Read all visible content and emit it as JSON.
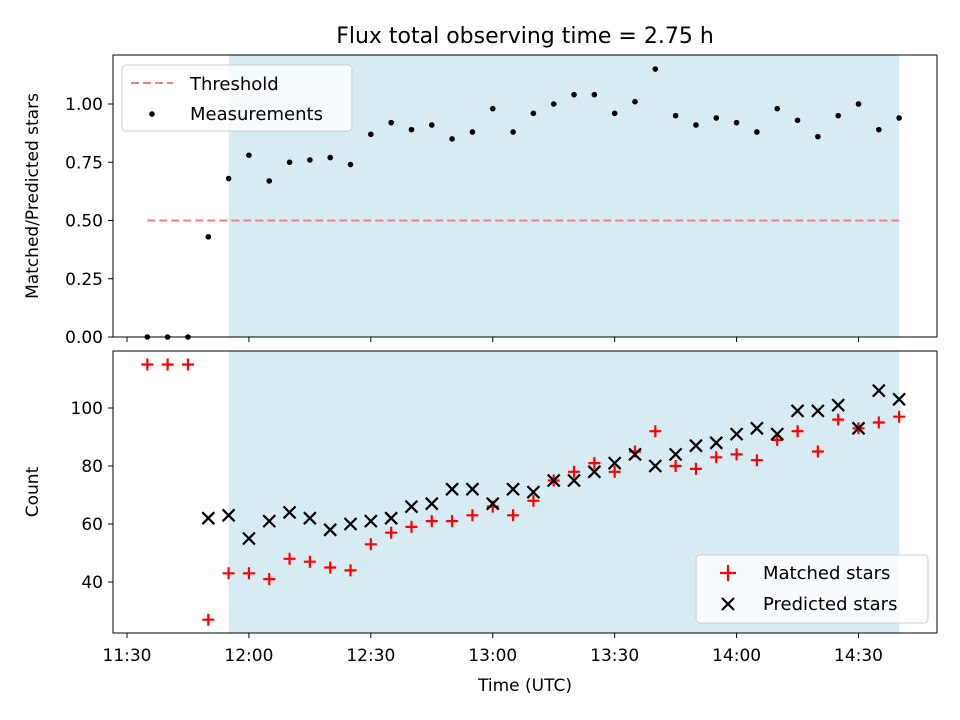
{
  "chart_data": [
    {
      "type": "scatter",
      "title": "Flux total observing time = 2.75 h",
      "ylabel": "Matched/Predicted stars",
      "xlabel": "",
      "ylim": [
        0,
        1.2
      ],
      "yticks": [
        "0.00",
        "0.25",
        "0.50",
        "0.75",
        "1.00"
      ],
      "observing_window": [
        "11:55",
        "14:40"
      ],
      "threshold": {
        "name": "Threshold",
        "value": 0.5,
        "x_range": [
          "11:35",
          "14:40"
        ],
        "color": "#f08080",
        "style": "dashed"
      },
      "legend": {
        "position": "top-left",
        "entries": [
          "Threshold",
          "Measurements"
        ]
      },
      "series": [
        {
          "name": "Measurements",
          "color": "#000000",
          "marker": "dot",
          "x": [
            "11:35",
            "11:40",
            "11:45",
            "11:50",
            "11:55",
            "12:00",
            "12:05",
            "12:10",
            "12:15",
            "12:20",
            "12:25",
            "12:30",
            "12:35",
            "12:40",
            "12:45",
            "12:50",
            "12:55",
            "13:00",
            "13:05",
            "13:10",
            "13:15",
            "13:20",
            "13:25",
            "13:30",
            "13:35",
            "13:40",
            "13:45",
            "13:50",
            "13:55",
            "14:00",
            "14:05",
            "14:10",
            "14:15",
            "14:20",
            "14:25",
            "14:30",
            "14:35",
            "14:40"
          ],
          "values": [
            0.0,
            0.0,
            0.0,
            0.43,
            0.68,
            0.78,
            0.67,
            0.75,
            0.76,
            0.77,
            0.74,
            0.87,
            0.92,
            0.89,
            0.91,
            0.85,
            0.88,
            0.98,
            0.88,
            0.96,
            1.0,
            1.04,
            1.04,
            0.96,
            1.01,
            1.15,
            0.95,
            0.91,
            0.94,
            0.92,
            0.88,
            0.98,
            0.93,
            0.86,
            0.95,
            1.0,
            0.89,
            0.94
          ]
        }
      ]
    },
    {
      "type": "scatter",
      "title": "",
      "ylabel": "Count",
      "xlabel": "Time (UTC)",
      "ylim": [
        23,
        118
      ],
      "yticks": [
        "40",
        "60",
        "80",
        "100"
      ],
      "xticks": [
        "11:30",
        "12:00",
        "12:30",
        "13:00",
        "13:30",
        "14:00",
        "14:30"
      ],
      "observing_window": [
        "11:55",
        "14:40"
      ],
      "legend": {
        "position": "bottom-right",
        "entries": [
          "Matched stars",
          "Predicted stars"
        ]
      },
      "series": [
        {
          "name": "Matched stars",
          "color": "#ff0000",
          "marker": "plus",
          "x": [
            "11:35",
            "11:40",
            "11:45",
            "11:50",
            "11:55",
            "12:00",
            "12:05",
            "12:10",
            "12:15",
            "12:20",
            "12:25",
            "12:30",
            "12:35",
            "12:40",
            "12:45",
            "12:50",
            "12:55",
            "13:00",
            "13:05",
            "13:10",
            "13:15",
            "13:20",
            "13:25",
            "13:30",
            "13:35",
            "13:40",
            "13:45",
            "13:50",
            "13:55",
            "14:00",
            "14:05",
            "14:10",
            "14:15",
            "14:20",
            "14:25",
            "14:30",
            "14:35",
            "14:40"
          ],
          "values": [
            115,
            115,
            115,
            27,
            43,
            43,
            41,
            48,
            47,
            45,
            44,
            53,
            57,
            59,
            61,
            61,
            63,
            66,
            63,
            68,
            75,
            78,
            81,
            78,
            85,
            92,
            80,
            79,
            83,
            84,
            82,
            89,
            92,
            85,
            96,
            93,
            95,
            97
          ]
        },
        {
          "name": "Predicted stars",
          "color": "#000000",
          "marker": "x",
          "x": [
            "11:50",
            "11:55",
            "12:00",
            "12:05",
            "12:10",
            "12:15",
            "12:20",
            "12:25",
            "12:30",
            "12:35",
            "12:40",
            "12:45",
            "12:50",
            "12:55",
            "13:00",
            "13:05",
            "13:10",
            "13:15",
            "13:20",
            "13:25",
            "13:30",
            "13:35",
            "13:40",
            "13:45",
            "13:50",
            "13:55",
            "14:00",
            "14:05",
            "14:10",
            "14:15",
            "14:20",
            "14:25",
            "14:30",
            "14:35",
            "14:40"
          ],
          "values": [
            62,
            63,
            55,
            61,
            64,
            62,
            58,
            60,
            61,
            62,
            66,
            67,
            72,
            72,
            67,
            72,
            71,
            75,
            75,
            78,
            81,
            84,
            80,
            84,
            87,
            88,
            91,
            93,
            91,
            99,
            99,
            101,
            93,
            106,
            103
          ]
        }
      ]
    }
  ]
}
